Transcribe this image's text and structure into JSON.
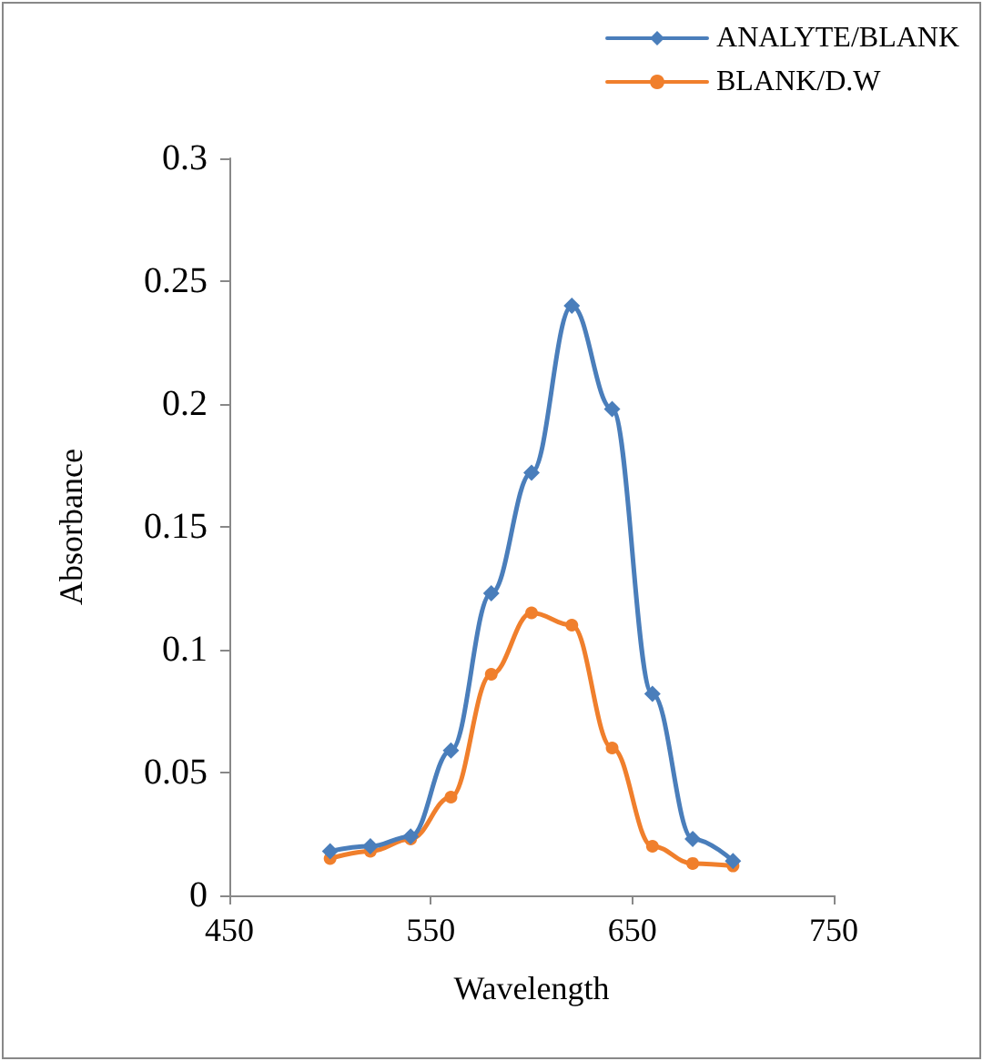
{
  "chart_data": {
    "type": "line",
    "xlabel": "Wavelength",
    "ylabel": "Absorbance",
    "x": [
      500,
      520,
      540,
      560,
      580,
      600,
      620,
      640,
      660,
      680,
      700
    ],
    "series": [
      {
        "name": "ANALYTE/BLANK",
        "color": "#4a7ebb",
        "marker": "diamond",
        "values": [
          0.018,
          0.02,
          0.024,
          0.059,
          0.123,
          0.172,
          0.24,
          0.198,
          0.082,
          0.023,
          0.014
        ]
      },
      {
        "name": "BLANK/D.W",
        "color": "#f07f2c",
        "marker": "circle",
        "values": [
          0.015,
          0.018,
          0.023,
          0.04,
          0.09,
          0.115,
          0.11,
          0.06,
          0.02,
          0.013,
          0.012
        ]
      }
    ],
    "xlim": [
      450,
      750
    ],
    "xticks": [
      450,
      550,
      650,
      750
    ],
    "ylim": [
      0,
      0.3
    ],
    "yticks": [
      0,
      0.05,
      0.1,
      0.15,
      0.2,
      0.25,
      0.3
    ],
    "grid": false,
    "legend": "top right",
    "line_style": "solid"
  }
}
